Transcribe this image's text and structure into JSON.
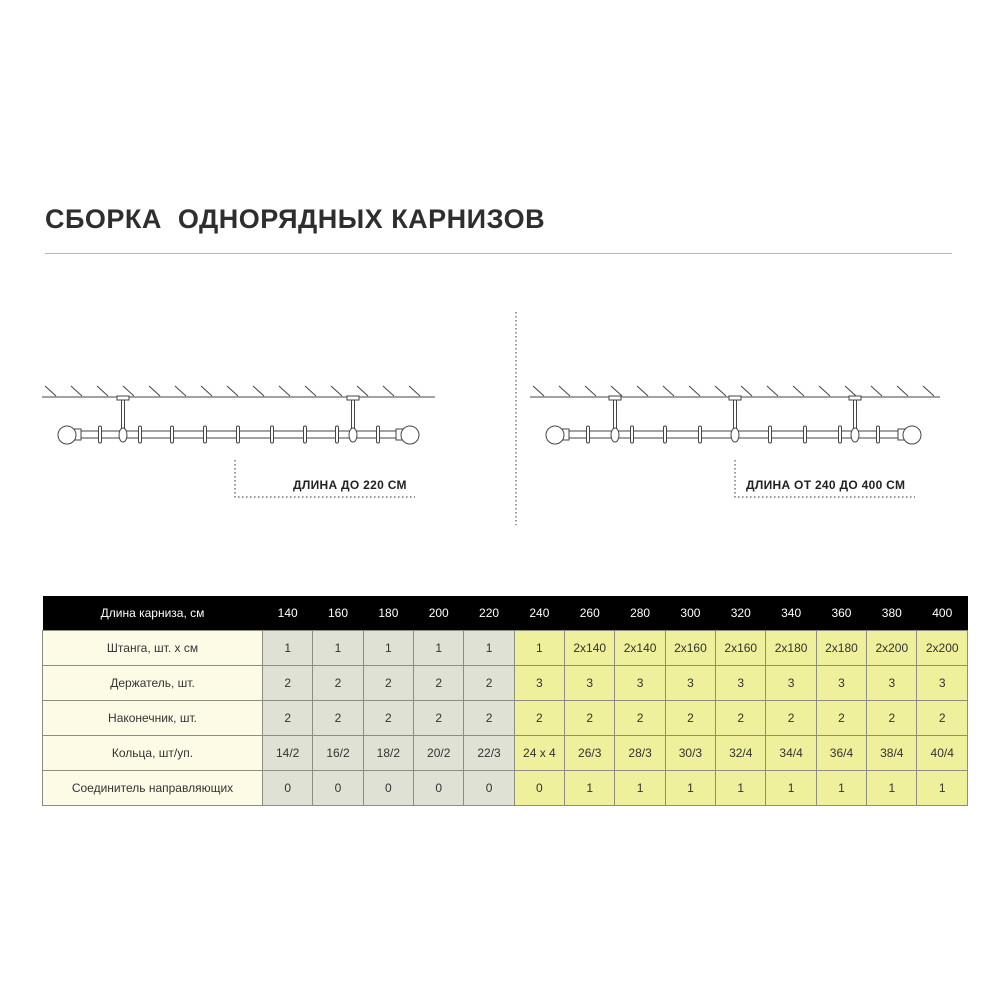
{
  "title": "СБОРКА  ОДНОРЯДНЫХ КАРНИЗОВ",
  "diagrams": {
    "left_label": "ДЛИНА ДО 220 СМ",
    "right_label": "ДЛИНА ОТ 240 ДО 400 СМ"
  },
  "colors": {
    "short_group": "#dfe1d4",
    "long_group": "#eef09b",
    "label_column": "#fdfbe6",
    "header": "#000000"
  },
  "table": {
    "header_label": "Длина карниза, см",
    "lengths": [
      "140",
      "160",
      "180",
      "200",
      "220",
      "240",
      "260",
      "280",
      "300",
      "320",
      "340",
      "360",
      "380",
      "400"
    ],
    "rows": [
      {
        "label": "Штанга, шт. х см",
        "values": [
          "1",
          "1",
          "1",
          "1",
          "1",
          "1",
          "2х140",
          "2х140",
          "2х160",
          "2х160",
          "2х180",
          "2х180",
          "2х200",
          "2х200"
        ]
      },
      {
        "label": "Держатель, шт.",
        "values": [
          "2",
          "2",
          "2",
          "2",
          "2",
          "3",
          "3",
          "3",
          "3",
          "3",
          "3",
          "3",
          "3",
          "3"
        ]
      },
      {
        "label": "Наконечник, шт.",
        "values": [
          "2",
          "2",
          "2",
          "2",
          "2",
          "2",
          "2",
          "2",
          "2",
          "2",
          "2",
          "2",
          "2",
          "2"
        ]
      },
      {
        "label": "Кольца, шт/уп.",
        "values": [
          "14/2",
          "16/2",
          "18/2",
          "20/2",
          "22/3",
          "24 х 4",
          "26/3",
          "28/3",
          "30/3",
          "32/4",
          "34/4",
          "36/4",
          "38/4",
          "40/4"
        ]
      },
      {
        "label": "Соединитель направляющих",
        "values": [
          "0",
          "0",
          "0",
          "0",
          "0",
          "0",
          "1",
          "1",
          "1",
          "1",
          "1",
          "1",
          "1",
          "1"
        ]
      }
    ]
  }
}
